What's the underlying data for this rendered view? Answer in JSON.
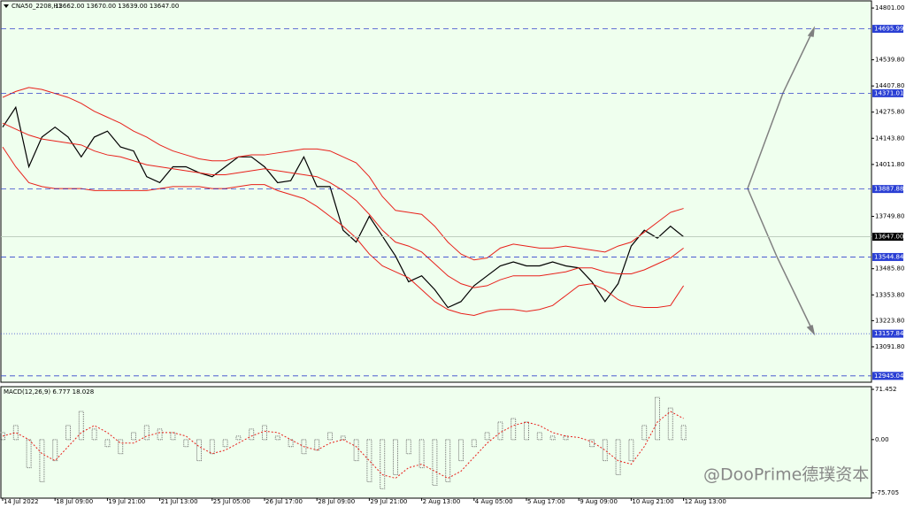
{
  "chart_data": [
    {
      "type": "line",
      "title": "CNA50_2208,H1",
      "subtitle": "13662.00 13670.00 13639.00 13647.00",
      "categories": [
        "14 Jul 2022",
        null,
        null,
        null,
        "18 Jul 09:00",
        null,
        null,
        null,
        "19 Jul 21:00",
        null,
        null,
        null,
        "21 Jul 13:00",
        null,
        null,
        null,
        "25 Jul 05:00",
        null,
        null,
        null,
        "26 Jul 17:00",
        null,
        null,
        null,
        "28 Jul 09:00",
        null,
        null,
        null,
        "29 Jul 21:00",
        null,
        null,
        null,
        "2 Aug 13:00",
        null,
        null,
        null,
        "4 Aug 05:00",
        null,
        null,
        null,
        "5 Aug 17:00",
        null,
        null,
        null,
        "9 Aug 09:00",
        null,
        null,
        null,
        "10 Aug 21:00",
        null,
        null,
        null,
        "12 Aug 13:00"
      ],
      "series": [
        {
          "color": "#000000",
          "values": [
            14200,
            14300,
            14000,
            14150,
            14200,
            14150,
            14050,
            14150,
            14180,
            14100,
            14080,
            13950,
            13920,
            14000,
            14000,
            13970,
            13950,
            14000,
            14050,
            14050,
            14000,
            13920,
            13930,
            14050,
            13900,
            13900,
            13680,
            13620,
            13750,
            13650,
            13550,
            13420,
            13450,
            13380,
            13290,
            13320,
            13400,
            13450,
            13500,
            13520,
            13500,
            13500,
            13520,
            13500,
            13490,
            13420,
            13320,
            13410,
            13600,
            13680,
            13640,
            13700,
            13647
          ]
        },
        {
          "color": "#e8201a",
          "values": [
            14350,
            14380,
            14400,
            14390,
            14370,
            14350,
            14320,
            14280,
            14250,
            14220,
            14180,
            14150,
            14110,
            14080,
            14060,
            14040,
            14030,
            14030,
            14050,
            14060,
            14060,
            14070,
            14080,
            14090,
            14090,
            14080,
            14050,
            14020,
            13950,
            13850,
            13780,
            13770,
            13760,
            13700,
            13620,
            13560,
            13530,
            13540,
            13590,
            13610,
            13600,
            13590,
            13590,
            13600,
            13590,
            13580,
            13570,
            13600,
            13620,
            13670,
            13720,
            13770,
            13790
          ]
        },
        {
          "color": "#e8201a",
          "values": [
            14220,
            14190,
            14160,
            14140,
            14130,
            14120,
            14110,
            14080,
            14060,
            14050,
            14030,
            14010,
            14000,
            13990,
            13980,
            13970,
            13960,
            13960,
            13970,
            13980,
            13990,
            13980,
            13970,
            13960,
            13950,
            13920,
            13880,
            13830,
            13760,
            13680,
            13620,
            13600,
            13570,
            13510,
            13450,
            13410,
            13390,
            13400,
            13430,
            13450,
            13450,
            13450,
            13460,
            13470,
            13490,
            13490,
            13470,
            13460,
            13460,
            13480,
            13510,
            13540,
            13590
          ]
        },
        {
          "color": "#e8201a",
          "values": [
            14100,
            14000,
            13920,
            13900,
            13890,
            13890,
            13890,
            13880,
            13880,
            13880,
            13880,
            13880,
            13890,
            13900,
            13900,
            13900,
            13890,
            13890,
            13900,
            13910,
            13910,
            13880,
            13860,
            13840,
            13800,
            13750,
            13700,
            13640,
            13560,
            13500,
            13470,
            13440,
            13380,
            13320,
            13280,
            13260,
            13250,
            13270,
            13280,
            13280,
            13270,
            13280,
            13300,
            13350,
            13400,
            13410,
            13380,
            13330,
            13300,
            13290,
            13290,
            13300,
            13400
          ]
        }
      ],
      "ylim": [
        12913,
        14837
      ],
      "yticks": [
        {
          "value": 14801,
          "label": "14801.00"
        },
        {
          "value": 14539.8,
          "label": "14539.80"
        },
        {
          "value": 14407.8,
          "label": "14407.80"
        },
        {
          "value": 14275.8,
          "label": "14275.80"
        },
        {
          "value": 14143.8,
          "label": "14143.80"
        },
        {
          "value": 14011.8,
          "label": "14011.80"
        },
        {
          "value": 13749.8,
          "label": "13749.80"
        },
        {
          "value": 13485.8,
          "label": "13485.80"
        },
        {
          "value": 13353.8,
          "label": "13353.80"
        },
        {
          "value": 13223.8,
          "label": "13223.80"
        },
        {
          "value": 13091.8,
          "label": "13091.80"
        }
      ],
      "levels": [
        {
          "value": 14695.99,
          "style": "dashed"
        },
        {
          "value": 14371.01,
          "style": "dashed"
        },
        {
          "value": 13887.88,
          "style": "dashed"
        },
        {
          "value": 13544.84,
          "style": "dashed"
        },
        {
          "value": 13157.84,
          "style": "dotted"
        },
        {
          "value": 12945.04,
          "style": "dashed"
        }
      ],
      "current": {
        "value": 13647,
        "label": "13647.00"
      },
      "watermark": "@DooPrime德璞资本"
    },
    {
      "type": "bar",
      "title": "MACD(12,26,9) 6.777 18.028",
      "series": [
        {
          "color": "#707070",
          "values": [
            10,
            20,
            -40,
            -60,
            -30,
            20,
            40,
            15,
            -10,
            -20,
            10,
            20,
            15,
            10,
            -10,
            -30,
            -20,
            -10,
            5,
            15,
            20,
            5,
            -10,
            -20,
            -15,
            10,
            5,
            -30,
            -60,
            -70,
            -50,
            -20,
            -40,
            -65,
            -60,
            -30,
            -10,
            10,
            25,
            30,
            25,
            10,
            5,
            5,
            0,
            -10,
            -30,
            -50,
            -30,
            20,
            60,
            45,
            20
          ]
        },
        {
          "color": "#e8201a",
          "values": [
            5,
            10,
            0,
            -20,
            -30,
            -10,
            10,
            20,
            10,
            -5,
            -5,
            5,
            10,
            10,
            5,
            -10,
            -20,
            -15,
            -5,
            5,
            12,
            10,
            0,
            -10,
            -15,
            -5,
            0,
            -10,
            -30,
            -50,
            -55,
            -40,
            -35,
            -45,
            -55,
            -45,
            -25,
            -5,
            10,
            20,
            25,
            20,
            10,
            5,
            3,
            -3,
            -15,
            -30,
            -35,
            -10,
            25,
            40,
            30
          ]
        }
      ],
      "ylim": [
        -83.3,
        75.3
      ],
      "yticks": [
        71.452,
        {
          "value": 0,
          "label": "0.00"
        },
        -75.705
      ]
    }
  ]
}
